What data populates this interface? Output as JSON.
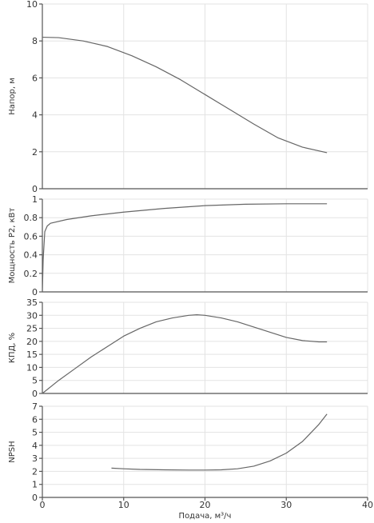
{
  "chart_data": [
    {
      "type": "line",
      "ylabel": "Напор, м",
      "xlim": [
        0,
        40
      ],
      "ylim": [
        0,
        10
      ],
      "yticks": [
        0,
        2,
        4,
        6,
        8,
        10
      ],
      "grid": true,
      "series": [
        {
          "x": [
            0,
            2,
            5,
            8,
            11,
            14,
            17,
            20,
            23,
            26,
            29,
            32,
            35
          ],
          "y": [
            8.2,
            8.18,
            8.0,
            7.7,
            7.2,
            6.6,
            5.9,
            5.1,
            4.3,
            3.5,
            2.75,
            2.25,
            1.95
          ]
        }
      ]
    },
    {
      "type": "line",
      "ylabel": "Мощность P2, кВт",
      "xlim": [
        0,
        40
      ],
      "ylim": [
        0,
        1
      ],
      "yticks": [
        0,
        0.2,
        0.4,
        0.6,
        0.8,
        1
      ],
      "grid": true,
      "series": [
        {
          "x": [
            0,
            0.1,
            0.3,
            0.6,
            1,
            3,
            6,
            10,
            15,
            20,
            25,
            30,
            35
          ],
          "y": [
            0.0,
            0.35,
            0.65,
            0.71,
            0.74,
            0.78,
            0.82,
            0.86,
            0.9,
            0.93,
            0.945,
            0.95,
            0.95
          ]
        }
      ]
    },
    {
      "type": "line",
      "ylabel": "КПД, %",
      "xlim": [
        0,
        40
      ],
      "ylim": [
        0,
        35
      ],
      "yticks": [
        0,
        5,
        10,
        15,
        20,
        25,
        30,
        35
      ],
      "grid": true,
      "series": [
        {
          "x": [
            0,
            2,
            4,
            6,
            8,
            10,
            12,
            14,
            16,
            18,
            19,
            20,
            22,
            24,
            26,
            28,
            30,
            32,
            34,
            35
          ],
          "y": [
            0,
            5,
            9.5,
            14,
            18,
            22,
            25,
            27.5,
            29,
            30,
            30.2,
            30,
            29,
            27.5,
            25.5,
            23.5,
            21.5,
            20.3,
            19.8,
            19.8
          ]
        }
      ]
    },
    {
      "type": "line",
      "ylabel": "NPSH",
      "xlabel": "Подача, м³/ч",
      "xlim": [
        0,
        40
      ],
      "ylim": [
        0,
        7
      ],
      "xticks": [
        0,
        10,
        20,
        30,
        40
      ],
      "yticks": [
        0,
        1,
        2,
        3,
        4,
        5,
        6,
        7
      ],
      "grid": true,
      "series": [
        {
          "x": [
            8.5,
            10,
            12,
            15,
            18,
            20,
            22,
            24,
            26,
            28,
            30,
            32,
            34,
            35
          ],
          "y": [
            2.25,
            2.2,
            2.15,
            2.12,
            2.1,
            2.1,
            2.12,
            2.2,
            2.4,
            2.8,
            3.4,
            4.3,
            5.6,
            6.4
          ]
        }
      ]
    }
  ]
}
